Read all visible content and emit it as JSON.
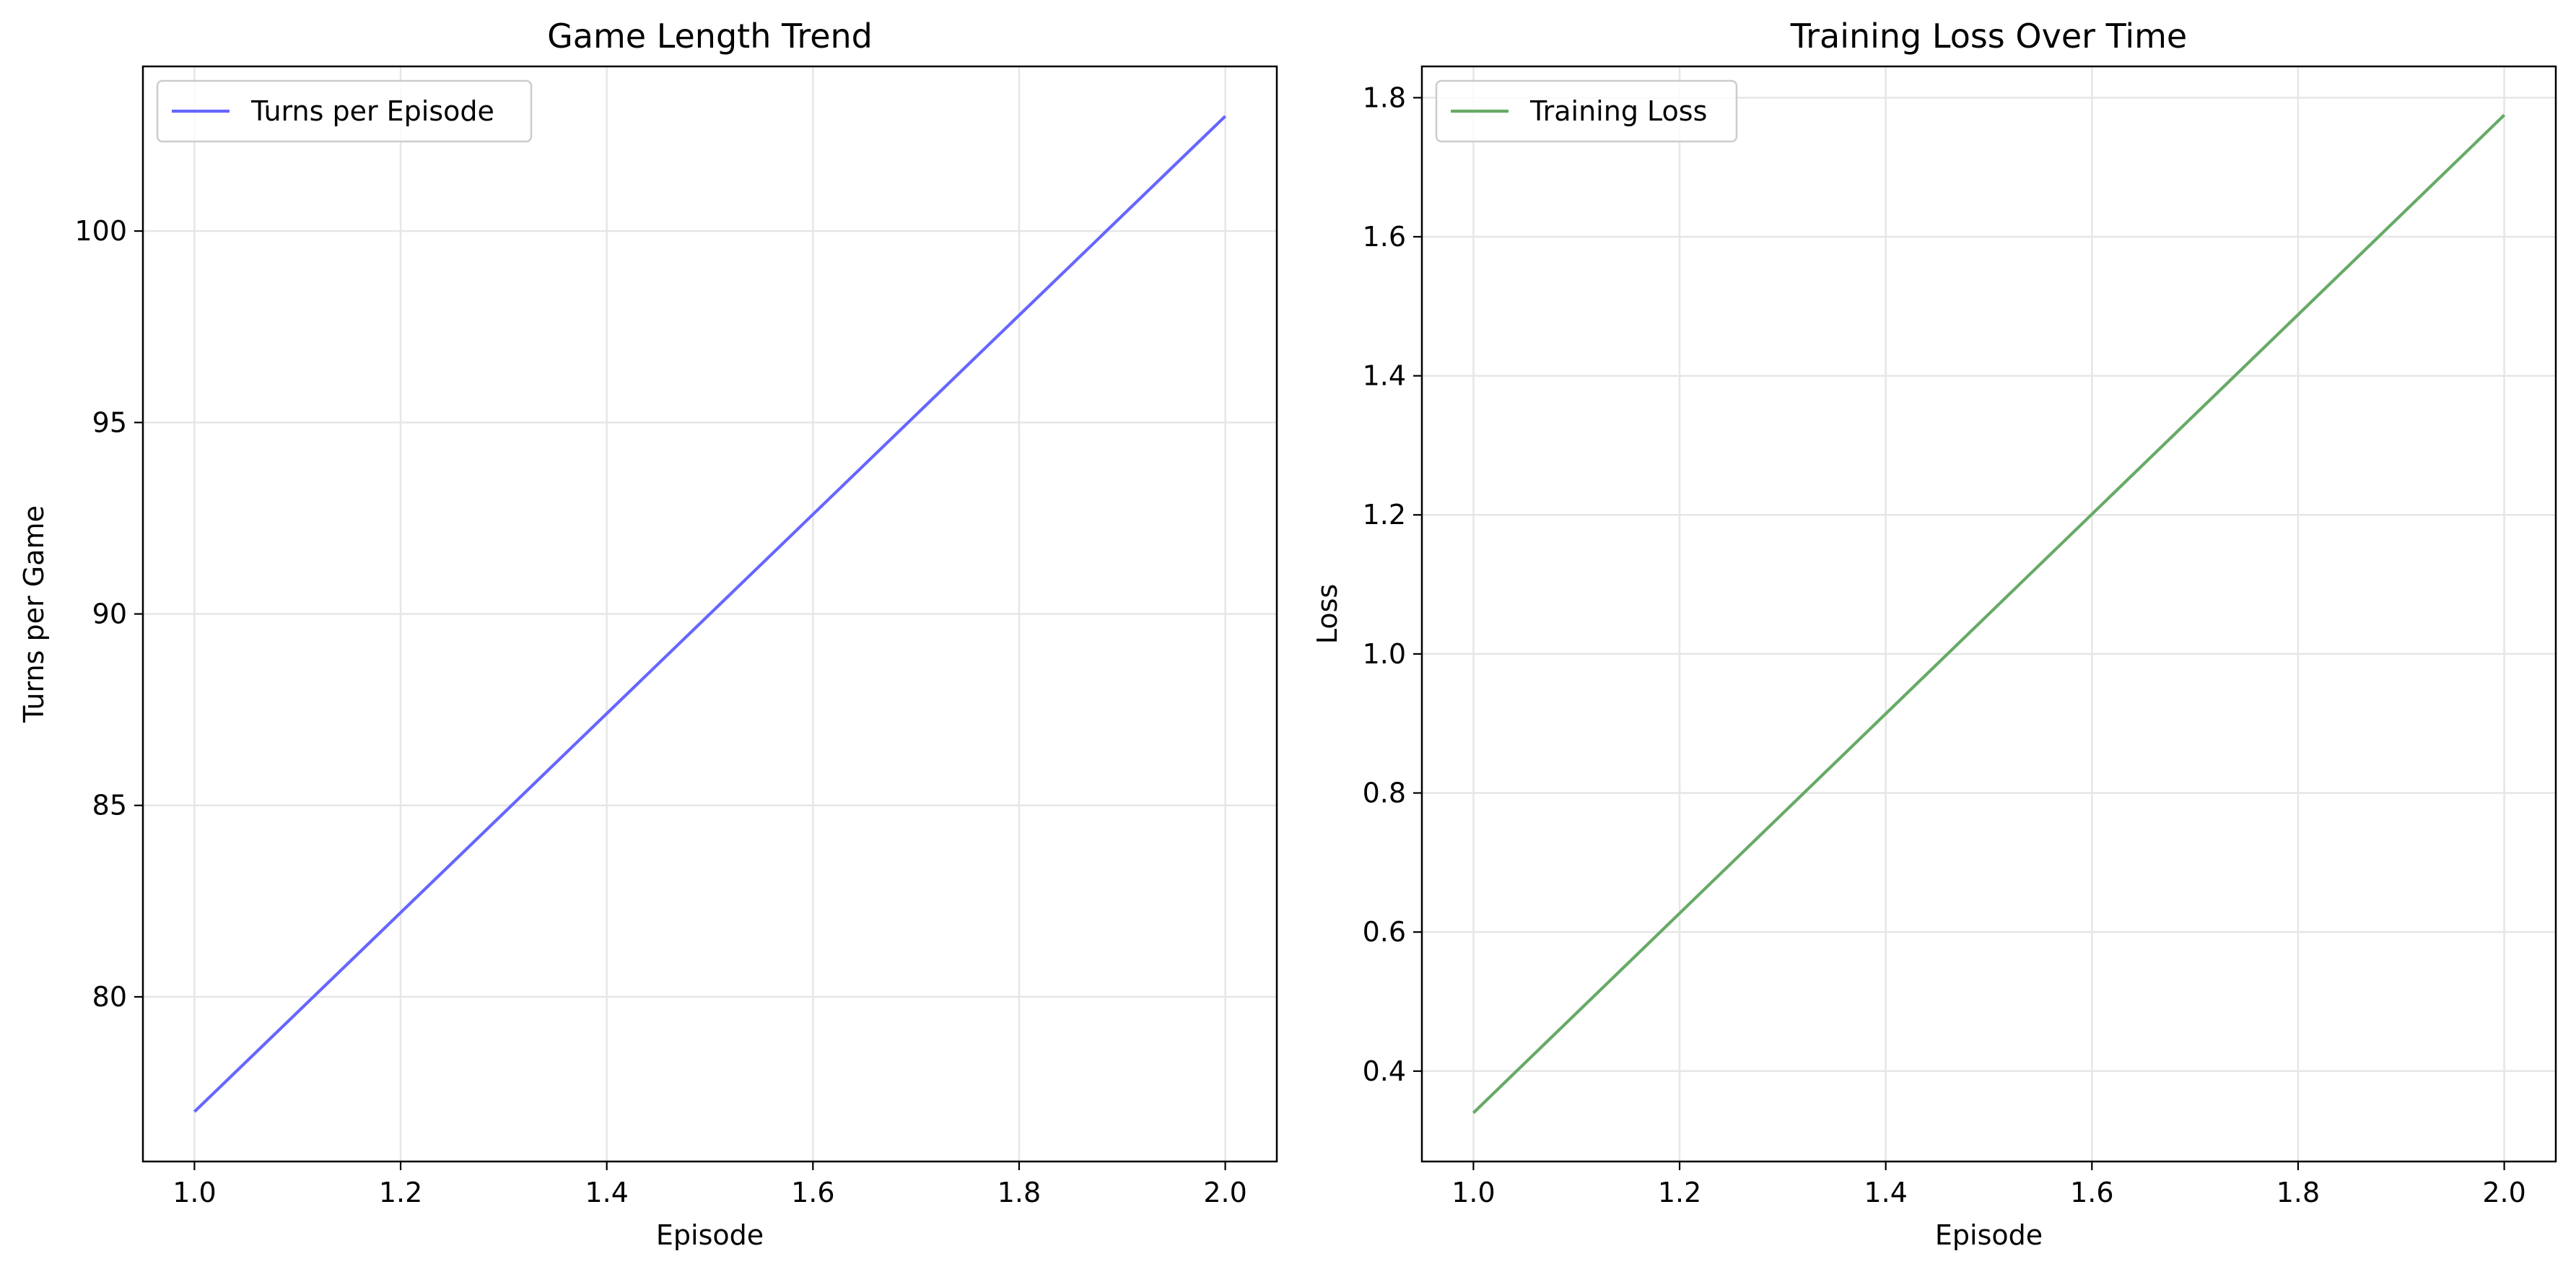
{
  "chart_data": [
    {
      "type": "line",
      "title": "Game Length Trend",
      "xlabel": "Episode",
      "ylabel": "Turns per Game",
      "xlim": [
        0.95,
        2.05
      ],
      "ylim": [
        75.7,
        104.3
      ],
      "xticks": [
        1.0,
        1.2,
        1.4,
        1.6,
        1.8,
        2.0
      ],
      "xtick_labels": [
        "1.0",
        "1.2",
        "1.4",
        "1.6",
        "1.8",
        "2.0"
      ],
      "yticks": [
        80,
        85,
        90,
        95,
        100
      ],
      "ytick_labels": [
        "80",
        "85",
        "90",
        "95",
        "100"
      ],
      "grid": true,
      "legend_position": "upper left",
      "series": [
        {
          "name": "Turns per Episode",
          "color": "#6666ff",
          "x": [
            1,
            2
          ],
          "y": [
            77,
            103
          ]
        }
      ]
    },
    {
      "type": "line",
      "title": "Training Loss Over Time",
      "xlabel": "Episode",
      "ylabel": "Loss",
      "xlim": [
        0.95,
        2.05
      ],
      "ylim": [
        0.27,
        1.845
      ],
      "xticks": [
        1.0,
        1.2,
        1.4,
        1.6,
        1.8,
        2.0
      ],
      "xtick_labels": [
        "1.0",
        "1.2",
        "1.4",
        "1.6",
        "1.8",
        "2.0"
      ],
      "yticks": [
        0.4,
        0.6,
        0.8,
        1.0,
        1.2,
        1.4,
        1.6,
        1.8
      ],
      "ytick_labels": [
        "0.4",
        "0.6",
        "0.8",
        "1.0",
        "1.2",
        "1.4",
        "1.6",
        "1.8"
      ],
      "grid": true,
      "legend_position": "upper left",
      "series": [
        {
          "name": "Training Loss",
          "color": "#66aa66",
          "x": [
            1,
            2
          ],
          "y": [
            0.34,
            1.775
          ]
        }
      ]
    }
  ]
}
